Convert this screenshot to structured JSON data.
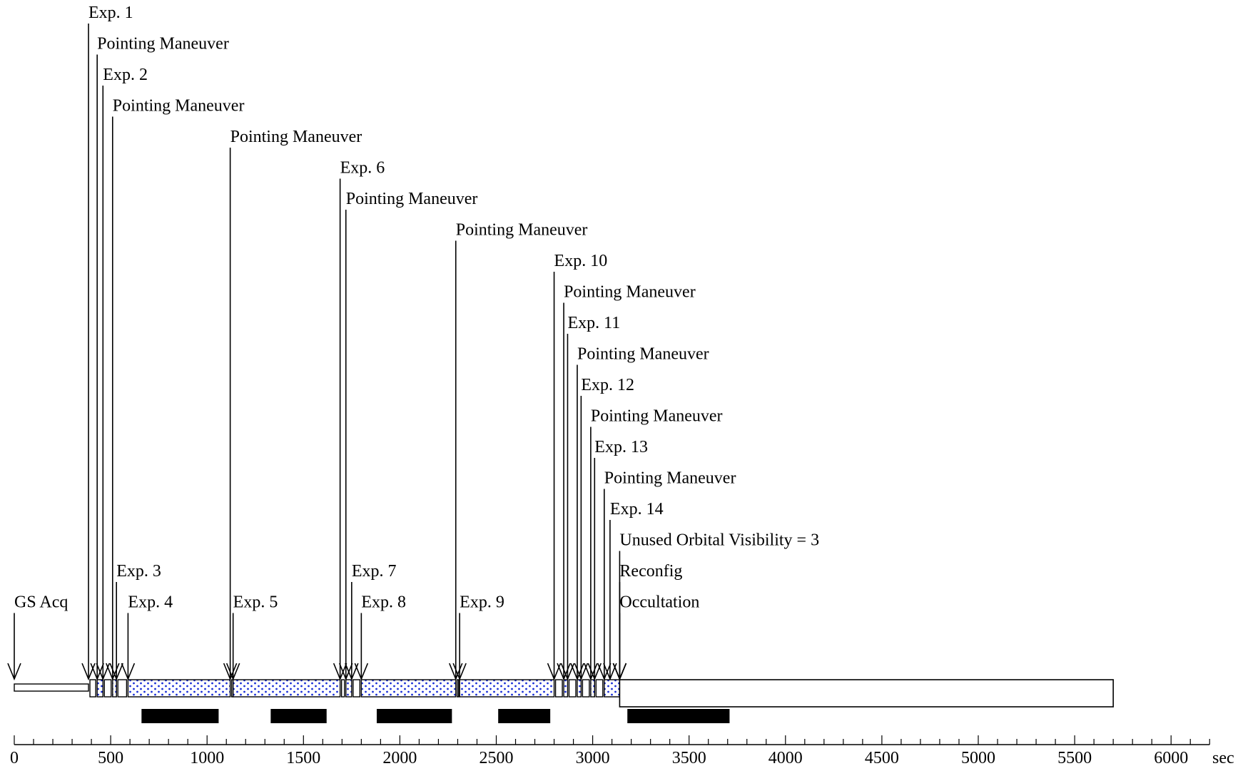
{
  "events": [
    {
      "label": "GS Acq",
      "t": 0,
      "row": 19
    },
    {
      "label": "Exp. 1",
      "t": 385,
      "row": 0
    },
    {
      "label": "Pointing Maneuver",
      "t": 430,
      "row": 1
    },
    {
      "label": "Exp. 2",
      "t": 460,
      "row": 2
    },
    {
      "label": "Pointing Maneuver",
      "t": 510,
      "row": 3
    },
    {
      "label": "Exp. 3",
      "t": 530,
      "row": 18
    },
    {
      "label": "Exp. 4",
      "t": 590,
      "row": 19
    },
    {
      "label": "Pointing Maneuver",
      "t": 1120,
      "row": 4
    },
    {
      "label": "Exp. 5",
      "t": 1135,
      "row": 19
    },
    {
      "label": "Exp. 6",
      "t": 1690,
      "row": 5
    },
    {
      "label": "Pointing Maneuver",
      "t": 1720,
      "row": 6
    },
    {
      "label": "Exp. 7",
      "t": 1750,
      "row": 18
    },
    {
      "label": "Exp. 8",
      "t": 1800,
      "row": 19
    },
    {
      "label": "Pointing Maneuver",
      "t": 2290,
      "row": 7
    },
    {
      "label": "Exp. 9",
      "t": 2310,
      "row": 19
    },
    {
      "label": "Exp. 10",
      "t": 2800,
      "row": 8
    },
    {
      "label": "Pointing Maneuver",
      "t": 2850,
      "row": 9
    },
    {
      "label": "Exp. 11",
      "t": 2870,
      "row": 10
    },
    {
      "label": "Pointing Maneuver",
      "t": 2920,
      "row": 11
    },
    {
      "label": "Exp. 12",
      "t": 2940,
      "row": 12
    },
    {
      "label": "Pointing Maneuver",
      "t": 2990,
      "row": 13
    },
    {
      "label": "Exp. 13",
      "t": 3010,
      "row": 14
    },
    {
      "label": "Pointing Maneuver",
      "t": 3060,
      "row": 15
    },
    {
      "label": "Exp. 14",
      "t": 3090,
      "row": 16
    },
    {
      "label": "Unused Orbital Visibility = 3",
      "t": 3140,
      "row": 17
    },
    {
      "label": "Reconfig",
      "t": 3140,
      "row": 18
    },
    {
      "label": "Occultation",
      "t": 3140,
      "row": 19
    }
  ],
  "bar_segments": [
    {
      "start": 0,
      "end": 385,
      "kind": "thin"
    },
    {
      "start": 385,
      "end": 430,
      "kind": "open"
    },
    {
      "start": 430,
      "end": 460,
      "kind": "dotted"
    },
    {
      "start": 460,
      "end": 510,
      "kind": "open"
    },
    {
      "start": 510,
      "end": 530,
      "kind": "dotted"
    },
    {
      "start": 530,
      "end": 590,
      "kind": "open"
    },
    {
      "start": 590,
      "end": 1120,
      "kind": "dotted"
    },
    {
      "start": 1120,
      "end": 1135,
      "kind": "open"
    },
    {
      "start": 1135,
      "end": 1690,
      "kind": "dotted"
    },
    {
      "start": 1690,
      "end": 1720,
      "kind": "open"
    },
    {
      "start": 1720,
      "end": 1750,
      "kind": "dotted"
    },
    {
      "start": 1750,
      "end": 1800,
      "kind": "open"
    },
    {
      "start": 1800,
      "end": 2290,
      "kind": "dotted"
    },
    {
      "start": 2290,
      "end": 2310,
      "kind": "open"
    },
    {
      "start": 2310,
      "end": 2800,
      "kind": "dotted"
    },
    {
      "start": 2800,
      "end": 2850,
      "kind": "open"
    },
    {
      "start": 2850,
      "end": 2870,
      "kind": "dotted"
    },
    {
      "start": 2870,
      "end": 2920,
      "kind": "open"
    },
    {
      "start": 2920,
      "end": 2940,
      "kind": "dotted"
    },
    {
      "start": 2940,
      "end": 2990,
      "kind": "open"
    },
    {
      "start": 2990,
      "end": 3010,
      "kind": "dotted"
    },
    {
      "start": 3010,
      "end": 3060,
      "kind": "open"
    },
    {
      "start": 3060,
      "end": 3140,
      "kind": "dotted"
    },
    {
      "start": 3140,
      "end": 5700,
      "kind": "open-large"
    }
  ],
  "black_bars": [
    {
      "start": 660,
      "end": 1060
    },
    {
      "start": 1330,
      "end": 1620
    },
    {
      "start": 1880,
      "end": 2270
    },
    {
      "start": 2510,
      "end": 2780
    },
    {
      "start": 3180,
      "end": 3710
    }
  ],
  "axis": {
    "min": 0,
    "max": 6200,
    "minor_step": 100,
    "major_step": 500,
    "tick_labels": [
      "0",
      "500",
      "1000",
      "1500",
      "2000",
      "2500",
      "3000",
      "3500",
      "4000",
      "4500",
      "5000",
      "5500",
      "6000"
    ],
    "unit": "sec"
  },
  "colors": {
    "dot_fill": "#1a2fd6",
    "line": "#000000",
    "background": "#ffffff"
  }
}
